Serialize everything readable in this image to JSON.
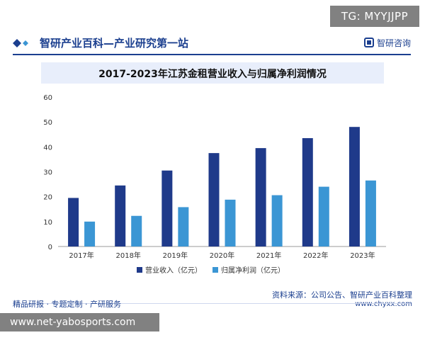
{
  "overlay_badge": "TG: MYYJJPP",
  "header": {
    "title": "智研产业百科—产业研究第一站",
    "brand": "智研咨询"
  },
  "footer": {
    "left": "精品研报 · 专题定制 · 产研服务",
    "source": "资料来源：公司公告、智研产业百科整理",
    "url": "www.chyxx.com"
  },
  "url_overlay": "www.net-yabosports.com",
  "colors": {
    "revenue": "#1f3a8a",
    "profit": "#3b96d4",
    "header_blue": "#1b3f8f",
    "title_bg": "#e8eefb"
  },
  "chart_data": {
    "type": "bar",
    "title": "2017-2023年江苏金租营业收入与归属净利润情况",
    "categories": [
      "2017年",
      "2018年",
      "2019年",
      "2020年",
      "2021年",
      "2022年",
      "2023年"
    ],
    "series": [
      {
        "name": "营业收入（亿元）",
        "values": [
          19.5,
          24.5,
          30.5,
          37.5,
          39.5,
          43.5,
          48
        ]
      },
      {
        "name": "归属净利润（亿元）",
        "values": [
          10,
          12.3,
          15.8,
          18.8,
          20.6,
          24,
          26.5
        ]
      }
    ],
    "yticks": [
      "0",
      "10",
      "20",
      "30",
      "40",
      "50",
      "60"
    ],
    "ylim": [
      0,
      60
    ],
    "legend_position": "bottom",
    "grid": false
  }
}
